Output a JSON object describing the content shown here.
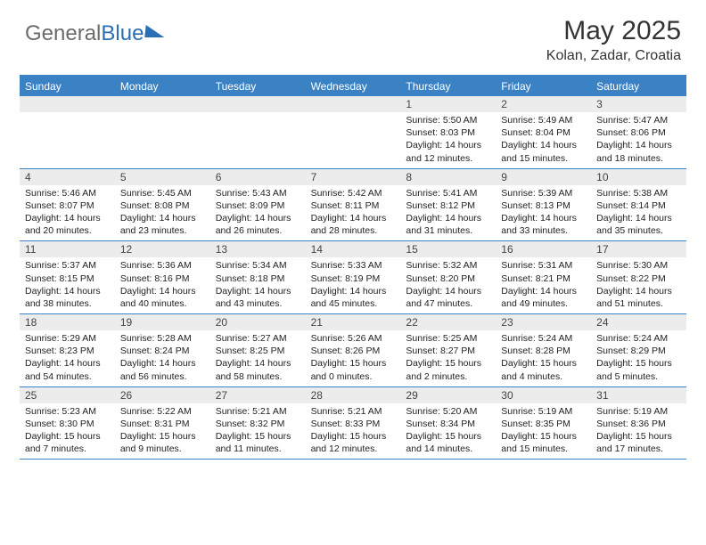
{
  "brand": {
    "word1": "General",
    "word2": "Blue"
  },
  "title": "May 2025",
  "location": "Kolan, Zadar, Croatia",
  "colors": {
    "header_bar": "#3b82c4",
    "daynum_bg": "#ececec",
    "text": "#333333",
    "brand_blue": "#2a6fb5"
  },
  "days_of_week": [
    "Sunday",
    "Monday",
    "Tuesday",
    "Wednesday",
    "Thursday",
    "Friday",
    "Saturday"
  ],
  "weeks": [
    [
      null,
      null,
      null,
      null,
      {
        "n": "1",
        "sr": "Sunrise: 5:50 AM",
        "ss": "Sunset: 8:03 PM",
        "dl": "Daylight: 14 hours and 12 minutes."
      },
      {
        "n": "2",
        "sr": "Sunrise: 5:49 AM",
        "ss": "Sunset: 8:04 PM",
        "dl": "Daylight: 14 hours and 15 minutes."
      },
      {
        "n": "3",
        "sr": "Sunrise: 5:47 AM",
        "ss": "Sunset: 8:06 PM",
        "dl": "Daylight: 14 hours and 18 minutes."
      }
    ],
    [
      {
        "n": "4",
        "sr": "Sunrise: 5:46 AM",
        "ss": "Sunset: 8:07 PM",
        "dl": "Daylight: 14 hours and 20 minutes."
      },
      {
        "n": "5",
        "sr": "Sunrise: 5:45 AM",
        "ss": "Sunset: 8:08 PM",
        "dl": "Daylight: 14 hours and 23 minutes."
      },
      {
        "n": "6",
        "sr": "Sunrise: 5:43 AM",
        "ss": "Sunset: 8:09 PM",
        "dl": "Daylight: 14 hours and 26 minutes."
      },
      {
        "n": "7",
        "sr": "Sunrise: 5:42 AM",
        "ss": "Sunset: 8:11 PM",
        "dl": "Daylight: 14 hours and 28 minutes."
      },
      {
        "n": "8",
        "sr": "Sunrise: 5:41 AM",
        "ss": "Sunset: 8:12 PM",
        "dl": "Daylight: 14 hours and 31 minutes."
      },
      {
        "n": "9",
        "sr": "Sunrise: 5:39 AM",
        "ss": "Sunset: 8:13 PM",
        "dl": "Daylight: 14 hours and 33 minutes."
      },
      {
        "n": "10",
        "sr": "Sunrise: 5:38 AM",
        "ss": "Sunset: 8:14 PM",
        "dl": "Daylight: 14 hours and 35 minutes."
      }
    ],
    [
      {
        "n": "11",
        "sr": "Sunrise: 5:37 AM",
        "ss": "Sunset: 8:15 PM",
        "dl": "Daylight: 14 hours and 38 minutes."
      },
      {
        "n": "12",
        "sr": "Sunrise: 5:36 AM",
        "ss": "Sunset: 8:16 PM",
        "dl": "Daylight: 14 hours and 40 minutes."
      },
      {
        "n": "13",
        "sr": "Sunrise: 5:34 AM",
        "ss": "Sunset: 8:18 PM",
        "dl": "Daylight: 14 hours and 43 minutes."
      },
      {
        "n": "14",
        "sr": "Sunrise: 5:33 AM",
        "ss": "Sunset: 8:19 PM",
        "dl": "Daylight: 14 hours and 45 minutes."
      },
      {
        "n": "15",
        "sr": "Sunrise: 5:32 AM",
        "ss": "Sunset: 8:20 PM",
        "dl": "Daylight: 14 hours and 47 minutes."
      },
      {
        "n": "16",
        "sr": "Sunrise: 5:31 AM",
        "ss": "Sunset: 8:21 PM",
        "dl": "Daylight: 14 hours and 49 minutes."
      },
      {
        "n": "17",
        "sr": "Sunrise: 5:30 AM",
        "ss": "Sunset: 8:22 PM",
        "dl": "Daylight: 14 hours and 51 minutes."
      }
    ],
    [
      {
        "n": "18",
        "sr": "Sunrise: 5:29 AM",
        "ss": "Sunset: 8:23 PM",
        "dl": "Daylight: 14 hours and 54 minutes."
      },
      {
        "n": "19",
        "sr": "Sunrise: 5:28 AM",
        "ss": "Sunset: 8:24 PM",
        "dl": "Daylight: 14 hours and 56 minutes."
      },
      {
        "n": "20",
        "sr": "Sunrise: 5:27 AM",
        "ss": "Sunset: 8:25 PM",
        "dl": "Daylight: 14 hours and 58 minutes."
      },
      {
        "n": "21",
        "sr": "Sunrise: 5:26 AM",
        "ss": "Sunset: 8:26 PM",
        "dl": "Daylight: 15 hours and 0 minutes."
      },
      {
        "n": "22",
        "sr": "Sunrise: 5:25 AM",
        "ss": "Sunset: 8:27 PM",
        "dl": "Daylight: 15 hours and 2 minutes."
      },
      {
        "n": "23",
        "sr": "Sunrise: 5:24 AM",
        "ss": "Sunset: 8:28 PM",
        "dl": "Daylight: 15 hours and 4 minutes."
      },
      {
        "n": "24",
        "sr": "Sunrise: 5:24 AM",
        "ss": "Sunset: 8:29 PM",
        "dl": "Daylight: 15 hours and 5 minutes."
      }
    ],
    [
      {
        "n": "25",
        "sr": "Sunrise: 5:23 AM",
        "ss": "Sunset: 8:30 PM",
        "dl": "Daylight: 15 hours and 7 minutes."
      },
      {
        "n": "26",
        "sr": "Sunrise: 5:22 AM",
        "ss": "Sunset: 8:31 PM",
        "dl": "Daylight: 15 hours and 9 minutes."
      },
      {
        "n": "27",
        "sr": "Sunrise: 5:21 AM",
        "ss": "Sunset: 8:32 PM",
        "dl": "Daylight: 15 hours and 11 minutes."
      },
      {
        "n": "28",
        "sr": "Sunrise: 5:21 AM",
        "ss": "Sunset: 8:33 PM",
        "dl": "Daylight: 15 hours and 12 minutes."
      },
      {
        "n": "29",
        "sr": "Sunrise: 5:20 AM",
        "ss": "Sunset: 8:34 PM",
        "dl": "Daylight: 15 hours and 14 minutes."
      },
      {
        "n": "30",
        "sr": "Sunrise: 5:19 AM",
        "ss": "Sunset: 8:35 PM",
        "dl": "Daylight: 15 hours and 15 minutes."
      },
      {
        "n": "31",
        "sr": "Sunrise: 5:19 AM",
        "ss": "Sunset: 8:36 PM",
        "dl": "Daylight: 15 hours and 17 minutes."
      }
    ]
  ]
}
